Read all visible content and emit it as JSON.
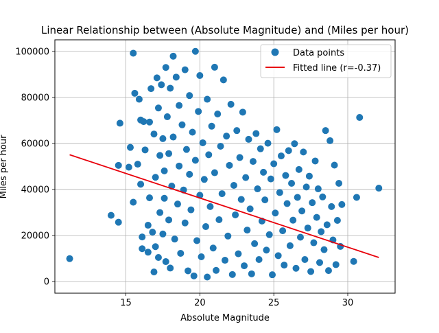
{
  "chart_data": {
    "type": "scatter",
    "title": "Linear Relationship between (Absolute Magnitude) and (Miles per hour)",
    "xlabel": "Absolute Magnitude",
    "ylabel": "Miles per hour",
    "xlim": [
      10.2,
      33.2
    ],
    "ylim": [
      -5000,
      105000
    ],
    "xticks": [
      15,
      20,
      25,
      30
    ],
    "yticks": [
      0,
      20000,
      40000,
      60000,
      80000,
      100000
    ],
    "grid": true,
    "legend_position": "top-right",
    "colors": {
      "points": "#1f77b4",
      "fit": "#e8000b"
    },
    "series": [
      {
        "name": "Data points",
        "kind": "scatter",
        "points": [
          [
            11.2,
            10000
          ],
          [
            14.0,
            28800
          ],
          [
            14.5,
            25800
          ],
          [
            14.5,
            50500
          ],
          [
            14.6,
            68800
          ],
          [
            15.2,
            49700
          ],
          [
            15.3,
            58300
          ],
          [
            15.5,
            34500
          ],
          [
            15.5,
            99200
          ],
          [
            15.6,
            81800
          ],
          [
            15.8,
            51000
          ],
          [
            15.9,
            79200
          ],
          [
            16.0,
            70200
          ],
          [
            16.0,
            42300
          ],
          [
            16.1,
            19400
          ],
          [
            16.1,
            14300
          ],
          [
            16.2,
            69500
          ],
          [
            16.3,
            57200
          ],
          [
            16.5,
            24500
          ],
          [
            16.5,
            12800
          ],
          [
            16.6,
            69300
          ],
          [
            16.6,
            36400
          ],
          [
            16.7,
            83800
          ],
          [
            16.8,
            21500
          ],
          [
            16.9,
            4200
          ],
          [
            16.9,
            64100
          ],
          [
            17.0,
            45300
          ],
          [
            17.0,
            15200
          ],
          [
            17.1,
            88500
          ],
          [
            17.2,
            10500
          ],
          [
            17.2,
            75400
          ],
          [
            17.3,
            54800
          ],
          [
            17.3,
            30000
          ],
          [
            17.4,
            85500
          ],
          [
            17.5,
            62100
          ],
          [
            17.5,
            20700
          ],
          [
            17.6,
            48100
          ],
          [
            17.6,
            36200
          ],
          [
            17.7,
            93000
          ],
          [
            17.7,
            8700
          ],
          [
            17.8,
            71600
          ],
          [
            17.9,
            26800
          ],
          [
            17.9,
            55600
          ],
          [
            18.0,
            84000
          ],
          [
            18.0,
            5900
          ],
          [
            18.1,
            41500
          ],
          [
            18.2,
            97900
          ],
          [
            18.2,
            62800
          ],
          [
            18.3,
            18500
          ],
          [
            18.4,
            88800
          ],
          [
            18.5,
            33700
          ],
          [
            18.6,
            76500
          ],
          [
            18.6,
            50200
          ],
          [
            18.7,
            12300
          ],
          [
            18.8,
            68100
          ],
          [
            18.9,
            39800
          ],
          [
            19.0,
            92000
          ],
          [
            19.0,
            25500
          ],
          [
            19.1,
            57400
          ],
          [
            19.2,
            4700
          ],
          [
            19.3,
            80800
          ],
          [
            19.3,
            46600
          ],
          [
            19.4,
            31200
          ],
          [
            19.5,
            64900
          ],
          [
            19.6,
            2500
          ],
          [
            19.7,
            100000
          ],
          [
            19.7,
            52700
          ],
          [
            19.8,
            17800
          ],
          [
            19.9,
            73900
          ],
          [
            20.0,
            37500
          ],
          [
            20.0,
            89500
          ],
          [
            20.1,
            10800
          ],
          [
            20.2,
            60300
          ],
          [
            20.3,
            44400
          ],
          [
            20.4,
            23900
          ],
          [
            20.5,
            79200
          ],
          [
            20.5,
            2000
          ],
          [
            20.6,
            55100
          ],
          [
            20.7,
            32600
          ],
          [
            20.8,
            67500
          ],
          [
            20.9,
            14600
          ],
          [
            21.0,
            93100
          ],
          [
            21.0,
            47300
          ],
          [
            21.1,
            4900
          ],
          [
            21.2,
            72800
          ],
          [
            21.3,
            26900
          ],
          [
            21.4,
            58800
          ],
          [
            21.5,
            38200
          ],
          [
            21.6,
            87600
          ],
          [
            21.7,
            9300
          ],
          [
            21.8,
            63200
          ],
          [
            21.9,
            19800
          ],
          [
            22.0,
            50500
          ],
          [
            22.1,
            77000
          ],
          [
            22.2,
            3100
          ],
          [
            22.3,
            41800
          ],
          [
            22.4,
            29000
          ],
          [
            22.5,
            65600
          ],
          [
            22.6,
            12100
          ],
          [
            22.7,
            53900
          ],
          [
            22.8,
            35700
          ],
          [
            22.9,
            73600
          ],
          [
            23.0,
            6900
          ],
          [
            23.1,
            45200
          ],
          [
            23.2,
            22400
          ],
          [
            23.3,
            61800
          ],
          [
            23.4,
            31600
          ],
          [
            23.5,
            3400
          ],
          [
            23.6,
            52200
          ],
          [
            23.7,
            16500
          ],
          [
            23.8,
            64300
          ],
          [
            23.9,
            40300
          ],
          [
            24.0,
            9600
          ],
          [
            24.1,
            57700
          ],
          [
            24.2,
            26300
          ],
          [
            24.3,
            47500
          ],
          [
            24.4,
            35500
          ],
          [
            24.5,
            13700
          ],
          [
            24.6,
            60100
          ],
          [
            24.7,
            20400
          ],
          [
            24.8,
            44600
          ],
          [
            24.9,
            3000
          ],
          [
            25.0,
            51200
          ],
          [
            25.1,
            29800
          ],
          [
            25.2,
            66000
          ],
          [
            25.3,
            11300
          ],
          [
            25.4,
            38700
          ],
          [
            25.5,
            54600
          ],
          [
            25.6,
            22100
          ],
          [
            25.7,
            7200
          ],
          [
            25.8,
            46100
          ],
          [
            25.9,
            33900
          ],
          [
            26.0,
            56900
          ],
          [
            26.1,
            15600
          ],
          [
            26.2,
            42700
          ],
          [
            26.3,
            26700
          ],
          [
            26.4,
            59900
          ],
          [
            26.5,
            5800
          ],
          [
            26.6,
            36600
          ],
          [
            26.7,
            48700
          ],
          [
            26.8,
            19300
          ],
          [
            26.9,
            30700
          ],
          [
            27.0,
            56300
          ],
          [
            27.1,
            9600
          ],
          [
            27.2,
            41100
          ],
          [
            27.3,
            23300
          ],
          [
            27.4,
            45800
          ],
          [
            27.5,
            4400
          ],
          [
            27.6,
            34300
          ],
          [
            27.7,
            16900
          ],
          [
            27.8,
            52400
          ],
          [
            27.9,
            27900
          ],
          [
            28.0,
            40300
          ],
          [
            28.1,
            8300
          ],
          [
            28.2,
            21700
          ],
          [
            28.3,
            36800
          ],
          [
            28.4,
            13900
          ],
          [
            28.5,
            65600
          ],
          [
            28.6,
            24700
          ],
          [
            28.7,
            4800
          ],
          [
            28.8,
            61200
          ],
          [
            28.9,
            32600
          ],
          [
            29.0,
            18100
          ],
          [
            29.1,
            50600
          ],
          [
            29.2,
            7400
          ],
          [
            29.3,
            26600
          ],
          [
            29.4,
            42700
          ],
          [
            29.5,
            15300
          ],
          [
            29.6,
            33500
          ],
          [
            30.4,
            8800
          ],
          [
            30.6,
            36600
          ],
          [
            30.8,
            71300
          ],
          [
            32.1,
            40600
          ]
        ]
      },
      {
        "name": "Fitted line (r=-0.37)",
        "kind": "line",
        "points": [
          [
            11.2,
            55100
          ],
          [
            32.1,
            10500
          ]
        ]
      }
    ]
  }
}
